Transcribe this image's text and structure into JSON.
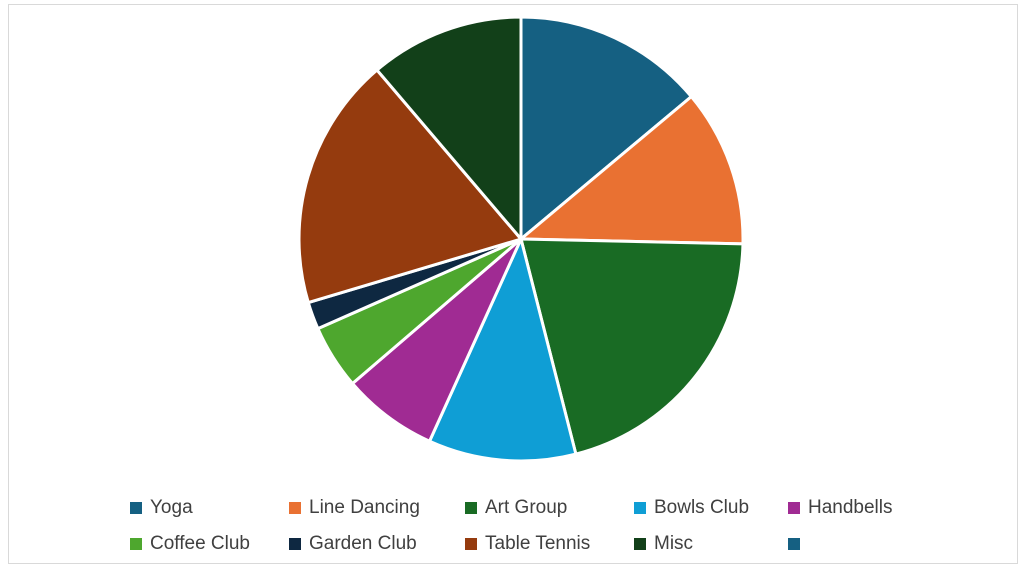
{
  "chart_data": {
    "type": "pie",
    "title": "",
    "categories": [
      "Yoga",
      "Line Dancing",
      "Art Group",
      "Bowls Club",
      "Handbells",
      "Coffee Club",
      "Garden Club",
      "Table Tennis",
      "Misc",
      ""
    ],
    "values": [
      14,
      11.5,
      20.8,
      10.8,
      7,
      4.7,
      2,
      18.5,
      11.3,
      0
    ],
    "colors": [
      "#156082",
      "#e97132",
      "#196b24",
      "#0f9ed5",
      "#a02b93",
      "#4ea72e",
      "#0e2841",
      "#953b0e",
      "#124019",
      "#156082"
    ],
    "legend_position": "bottom"
  }
}
